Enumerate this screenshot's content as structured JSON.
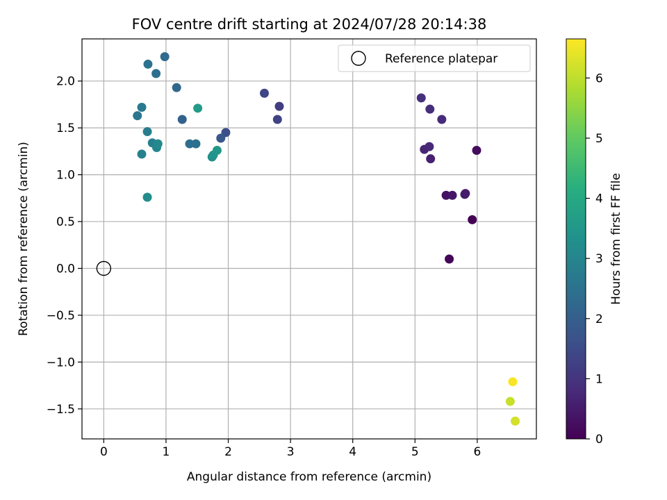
{
  "chart_data": {
    "type": "scatter",
    "title": "FOV centre drift starting at 2024/07/28 20:14:38",
    "xlabel": "Angular distance from reference (arcmin)",
    "ylabel": "Rotation from reference (arcmin)",
    "xlim": [
      -0.35,
      6.95
    ],
    "ylim": [
      -1.82,
      2.45
    ],
    "xticks": [
      0,
      1,
      2,
      3,
      4,
      5,
      6
    ],
    "xtick_labels": [
      "0",
      "1",
      "2",
      "3",
      "4",
      "5",
      "6"
    ],
    "yticks": [
      -1.5,
      -1.0,
      -0.5,
      0.0,
      0.5,
      1.0,
      1.5,
      2.0
    ],
    "ytick_labels": [
      "−1.5",
      "−1.0",
      "−0.5",
      "0.0",
      "0.5",
      "1.0",
      "1.5",
      "2.0"
    ],
    "grid": true,
    "legend": {
      "label": "Reference platepar",
      "placement": "top-right"
    },
    "reference_point": {
      "x": 0.0,
      "y": 0.0
    },
    "colormap": "viridis",
    "colorbar": {
      "label": "Hours from first FF file",
      "range": [
        0,
        6.65
      ],
      "ticks": [
        0,
        1,
        2,
        3,
        4,
        5,
        6
      ],
      "tick_labels": [
        "0",
        "1",
        "2",
        "3",
        "4",
        "5",
        "6"
      ]
    },
    "series": [
      {
        "points": [
          {
            "x": 5.92,
            "y": 0.52,
            "c": 0.0
          },
          {
            "x": 5.55,
            "y": 0.1,
            "c": 0.1
          },
          {
            "x": 5.99,
            "y": 1.26,
            "c": 0.2
          },
          {
            "x": 5.5,
            "y": 0.78,
            "c": 0.3
          },
          {
            "x": 5.6,
            "y": 0.78,
            "c": 0.4
          },
          {
            "x": 5.8,
            "y": 0.79,
            "c": 0.45
          },
          {
            "x": 5.81,
            "y": 0.8,
            "c": 0.5
          },
          {
            "x": 5.25,
            "y": 1.17,
            "c": 0.6
          },
          {
            "x": 5.15,
            "y": 1.27,
            "c": 0.7
          },
          {
            "x": 5.23,
            "y": 1.3,
            "c": 0.75
          },
          {
            "x": 5.43,
            "y": 1.59,
            "c": 0.8
          },
          {
            "x": 5.24,
            "y": 1.7,
            "c": 0.85
          },
          {
            "x": 5.1,
            "y": 1.82,
            "c": 0.9
          },
          {
            "x": 2.82,
            "y": 1.73,
            "c": 1.2
          },
          {
            "x": 2.79,
            "y": 1.59,
            "c": 1.3
          },
          {
            "x": 2.58,
            "y": 1.87,
            "c": 1.4
          },
          {
            "x": 1.96,
            "y": 1.45,
            "c": 1.6
          },
          {
            "x": 1.88,
            "y": 1.39,
            "c": 1.8
          },
          {
            "x": 1.26,
            "y": 1.59,
            "c": 2.1
          },
          {
            "x": 1.17,
            "y": 1.93,
            "c": 2.2
          },
          {
            "x": 0.98,
            "y": 2.26,
            "c": 2.3
          },
          {
            "x": 0.84,
            "y": 2.08,
            "c": 2.4
          },
          {
            "x": 1.38,
            "y": 1.33,
            "c": 2.4
          },
          {
            "x": 1.48,
            "y": 1.33,
            "c": 2.45
          },
          {
            "x": 0.71,
            "y": 2.18,
            "c": 2.5
          },
          {
            "x": 0.54,
            "y": 1.63,
            "c": 2.6
          },
          {
            "x": 0.61,
            "y": 1.72,
            "c": 2.7
          },
          {
            "x": 0.7,
            "y": 1.46,
            "c": 2.8
          },
          {
            "x": 0.78,
            "y": 1.34,
            "c": 2.85
          },
          {
            "x": 0.61,
            "y": 1.22,
            "c": 2.9
          },
          {
            "x": 0.85,
            "y": 1.29,
            "c": 3.0
          },
          {
            "x": 0.87,
            "y": 1.33,
            "c": 3.1
          },
          {
            "x": 0.7,
            "y": 0.76,
            "c": 3.2
          },
          {
            "x": 1.74,
            "y": 1.19,
            "c": 3.3
          },
          {
            "x": 1.76,
            "y": 1.21,
            "c": 3.4
          },
          {
            "x": 1.82,
            "y": 1.26,
            "c": 3.5
          },
          {
            "x": 1.51,
            "y": 1.71,
            "c": 3.6
          },
          {
            "x": 6.53,
            "y": -1.42,
            "c": 6.1
          },
          {
            "x": 6.61,
            "y": -1.63,
            "c": 6.2
          },
          {
            "x": 6.57,
            "y": -1.21,
            "c": 6.6
          }
        ]
      }
    ]
  }
}
